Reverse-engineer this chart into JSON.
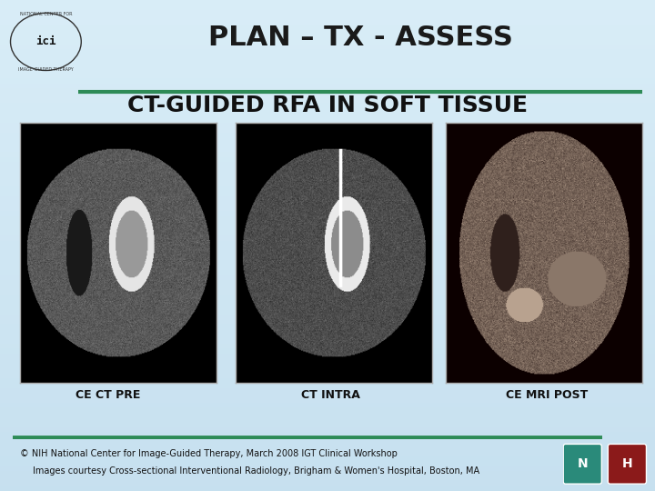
{
  "title": "PLAN – TX - ASSESS",
  "subtitle": "CT-GUIDED RFA IN SOFT TISSUE",
  "bg_color": "#cce8f4",
  "title_color": "#1a1a1a",
  "subtitle_color": "#111111",
  "green_line_color": "#2e8b57",
  "caption1": "CE CT PRE",
  "caption2": "CT INTRA",
  "caption3": "CE MRI POST",
  "footer_line1": "© NIH National Center for Image-Guided Therapy, March 2008 IGT Clinical Workshop",
  "footer_line2": "Images courtesy Cross-sectional Interventional Radiology, Brigham & Women's Hospital, Boston, MA",
  "title_fontsize": 22,
  "subtitle_fontsize": 18,
  "caption_fontsize": 9,
  "footer_fontsize": 7
}
